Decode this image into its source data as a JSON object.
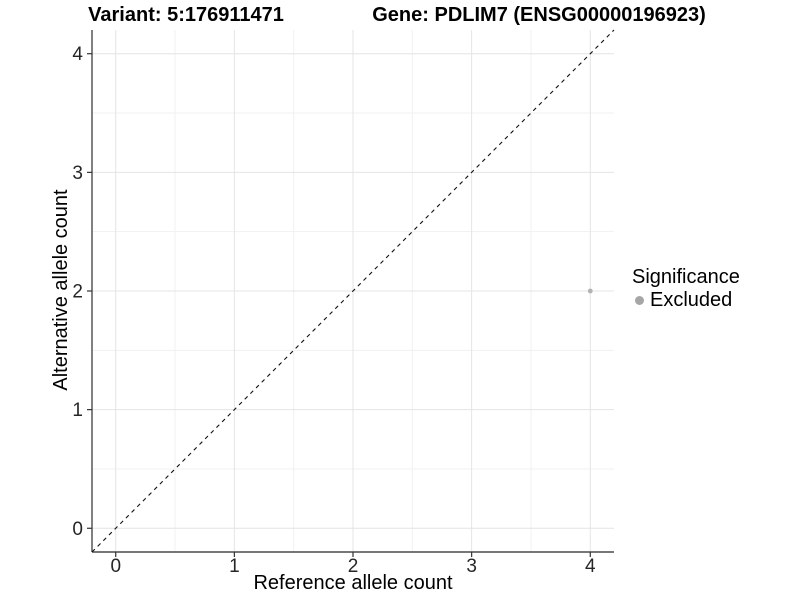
{
  "chart_data": {
    "type": "scatter",
    "title_left": "Variant: 5:176911471",
    "title_right": "Gene: PDLIM7 (ENSG00000196923)",
    "xlabel": "Reference allele count",
    "ylabel": "Alternative allele count",
    "xlim": [
      -0.2,
      4.2
    ],
    "ylim": [
      -0.2,
      4.2
    ],
    "x_ticks": [
      0,
      1,
      2,
      3,
      4
    ],
    "y_ticks": [
      0,
      1,
      2,
      3,
      4
    ],
    "x_minor_ticks": [
      0.5,
      1.5,
      2.5,
      3.5
    ],
    "y_minor_ticks": [
      0.5,
      1.5,
      2.5,
      3.5
    ],
    "grid": "major+minor",
    "legend_position": "right",
    "identity_line": {
      "style": "dashed",
      "from": [
        -0.2,
        -0.2
      ],
      "to": [
        4.2,
        4.2
      ]
    },
    "points": [
      {
        "x": 4,
        "y": 2,
        "significance": "Excluded"
      }
    ],
    "legend": {
      "title": "Significance",
      "items": [
        {
          "label": "Excluded",
          "color": "#a6a6a6"
        }
      ]
    },
    "colors": {
      "point": "#b3b3b3",
      "identity_line": "#111111",
      "grid_major": "#e4e4e4",
      "grid_minor": "#f1f1f1",
      "axis_line": "#4a4a4a",
      "tick_mark": "#333333",
      "tick_label": "#262626",
      "background": "#ffffff"
    }
  }
}
